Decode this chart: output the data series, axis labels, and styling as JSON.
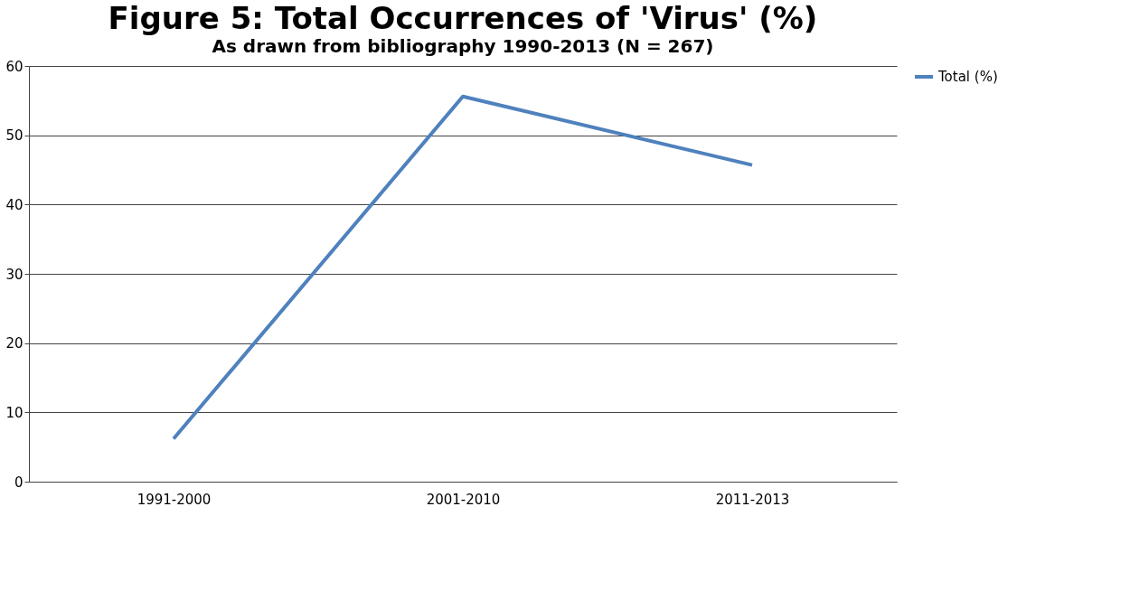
{
  "chart_data": {
    "type": "line",
    "title": "Figure 5: Total Occurrences of 'Virus' (%)",
    "subtitle": "As drawn from bibliography 1990-2013 (N = 267)",
    "categories": [
      "1991-2000",
      "2001-2010",
      "2011-2013"
    ],
    "series": [
      {
        "name": "Total (%)",
        "color": "#4f81bd",
        "values": [
          6.2,
          55.6,
          45.7
        ]
      }
    ],
    "ylim": [
      0,
      60
    ],
    "yticks": [
      0,
      10,
      20,
      30,
      40,
      50,
      60
    ],
    "grid": "y",
    "legend": "right",
    "marker": "none",
    "line_style": "solid"
  }
}
